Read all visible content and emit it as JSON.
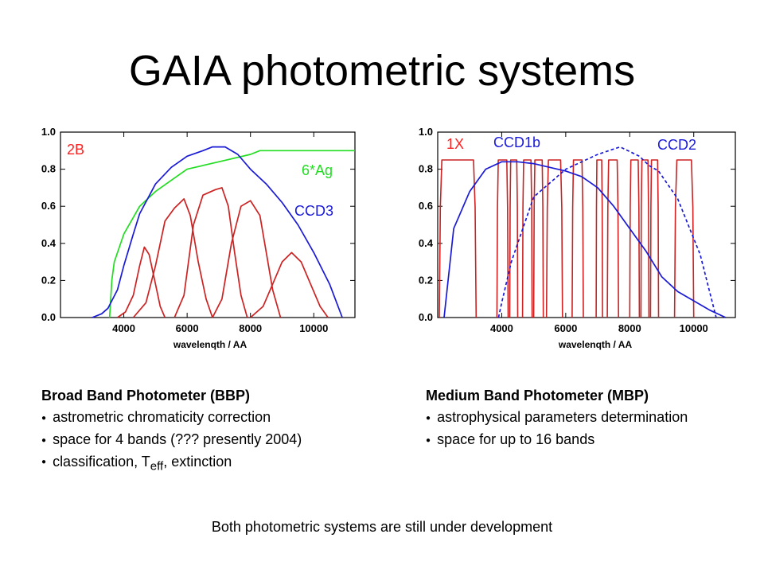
{
  "slide": {
    "title": "GAIA photometric systems",
    "footer": "Both photometric systems are still under development"
  },
  "bbp": {
    "heading": "Broad Band Photometer (BBP)",
    "bullets": [
      "astrometric chromaticity correction",
      "space for 4 bands (??? presently 2004)"
    ],
    "bullet3_prefix": "classification, T",
    "bullet3_sub": "eff",
    "bullet3_suffix": ", extinction"
  },
  "mbp": {
    "heading": "Medium Band Photometer (MBP)",
    "bullets": [
      "astrophysical parameters determination",
      "space for up to 16 bands"
    ]
  },
  "bullet_glyph": "●",
  "chart_data": [
    {
      "type": "line",
      "title": "",
      "xlabel": "wavelenqth / AA",
      "ylabel": "",
      "xlim": [
        2000,
        11300
      ],
      "ylim": [
        0,
        1.0
      ],
      "xticks": [
        4000,
        6000,
        8000,
        10000
      ],
      "yticks": [
        0.0,
        0.2,
        0.4,
        0.6,
        0.8,
        1.0
      ],
      "ytick_labels": [
        "0.0",
        "0.2",
        "0.4",
        "0.6",
        "0.8",
        "1.0"
      ],
      "grid": false,
      "annotations": [
        {
          "text": "2B",
          "color": "#ff2020",
          "series": "2B"
        },
        {
          "text": "6*Ag",
          "color": "#22dd22",
          "series": "6*Ag"
        },
        {
          "text": "CCD3",
          "color": "#1a1ad6",
          "series": "CCD3"
        }
      ],
      "series": [
        {
          "name": "6*Ag",
          "color": "#22dd22",
          "dash": false,
          "x": [
            3550,
            3620,
            3700,
            4000,
            4500,
            5000,
            5500,
            6000,
            7000,
            8000,
            8300,
            9000,
            10000,
            11000,
            11300
          ],
          "y": [
            0.0,
            0.2,
            0.3,
            0.45,
            0.6,
            0.68,
            0.74,
            0.8,
            0.84,
            0.88,
            0.9,
            0.9,
            0.9,
            0.9,
            0.9
          ]
        },
        {
          "name": "CCD3",
          "color": "#1a1ad6",
          "dash": false,
          "x": [
            3000,
            3300,
            3500,
            3800,
            4000,
            4300,
            4500,
            5000,
            5500,
            6000,
            6500,
            6800,
            7200,
            7600,
            8000,
            8500,
            9000,
            9500,
            10000,
            10500,
            10900
          ],
          "y": [
            0.0,
            0.02,
            0.05,
            0.15,
            0.28,
            0.45,
            0.56,
            0.72,
            0.81,
            0.87,
            0.9,
            0.92,
            0.92,
            0.88,
            0.8,
            0.72,
            0.62,
            0.5,
            0.35,
            0.18,
            0.0
          ]
        },
        {
          "name": "2B-band1",
          "color": "#cc2222",
          "dash": false,
          "x": [
            3800,
            4050,
            4300,
            4500,
            4650,
            4800,
            5000,
            5150,
            5300
          ],
          "y": [
            0.0,
            0.03,
            0.12,
            0.28,
            0.38,
            0.34,
            0.18,
            0.06,
            0.0
          ]
        },
        {
          "name": "2B-band2",
          "color": "#cc2222",
          "dash": false,
          "x": [
            4300,
            4700,
            5000,
            5300,
            5600,
            5900,
            6100,
            6350,
            6600,
            6800
          ],
          "y": [
            0.0,
            0.08,
            0.28,
            0.52,
            0.59,
            0.64,
            0.55,
            0.3,
            0.1,
            0.0
          ]
        },
        {
          "name": "2B-band3",
          "color": "#cc2222",
          "dash": false,
          "x": [
            5600,
            5900,
            6200,
            6500,
            6900,
            7100,
            7300,
            7500,
            7700,
            7900
          ],
          "y": [
            0.0,
            0.12,
            0.5,
            0.66,
            0.69,
            0.7,
            0.6,
            0.35,
            0.12,
            0.0
          ]
        },
        {
          "name": "2B-band4",
          "color": "#cc2222",
          "dash": false,
          "x": [
            6800,
            7100,
            7400,
            7700,
            8000,
            8300,
            8500,
            8700,
            8950
          ],
          "y": [
            0.0,
            0.1,
            0.4,
            0.6,
            0.63,
            0.55,
            0.35,
            0.15,
            0.0
          ]
        },
        {
          "name": "2B-band5",
          "color": "#cc2222",
          "dash": false,
          "x": [
            8000,
            8400,
            8700,
            9000,
            9300,
            9600,
            9900,
            10200,
            10450
          ],
          "y": [
            0.0,
            0.06,
            0.18,
            0.3,
            0.35,
            0.3,
            0.18,
            0.06,
            0.0
          ]
        }
      ]
    },
    {
      "type": "line",
      "title": "",
      "xlabel": "wavelenqth / AA",
      "ylabel": "",
      "xlim": [
        2000,
        11300
      ],
      "ylim": [
        0,
        1.0
      ],
      "xticks": [
        4000,
        6000,
        8000,
        10000
      ],
      "yticks": [
        0.0,
        0.2,
        0.4,
        0.6,
        0.8,
        1.0
      ],
      "ytick_labels": [
        "0.0",
        "0.2",
        "0.4",
        "0.6",
        "0.8",
        "1.0"
      ],
      "grid": false,
      "annotations": [
        {
          "text": "1X",
          "color": "#ff2020",
          "series": "1X"
        },
        {
          "text": "CCD1b",
          "color": "#1a1ad6",
          "series": "CCD1b"
        },
        {
          "text": "CCD2",
          "color": "#1a1ad6",
          "series": "CCD2"
        }
      ],
      "filters": [
        [
          2050,
          3200
        ],
        [
          3850,
          4200
        ],
        [
          4250,
          4500
        ],
        [
          4650,
          4950
        ],
        [
          5000,
          5300
        ],
        [
          5400,
          5900
        ],
        [
          6200,
          6550
        ],
        [
          6950,
          7150
        ],
        [
          7300,
          7650
        ],
        [
          8000,
          8300
        ],
        [
          8350,
          8600
        ],
        [
          8650,
          8900
        ],
        [
          9400,
          10000
        ]
      ],
      "filter_peak": 0.85,
      "filter_color": "#cc2222",
      "series": [
        {
          "name": "CCD1b",
          "color": "#1a1ad6",
          "dash": false,
          "x": [
            2200,
            2500,
            3000,
            3500,
            4000,
            4500,
            5000,
            5500,
            6000,
            6500,
            7000,
            7500,
            8000,
            8500,
            9000,
            9500,
            10000,
            10500,
            11000
          ],
          "y": [
            0.0,
            0.48,
            0.68,
            0.8,
            0.84,
            0.84,
            0.83,
            0.81,
            0.79,
            0.76,
            0.7,
            0.6,
            0.48,
            0.36,
            0.22,
            0.14,
            0.09,
            0.04,
            0.0
          ]
        },
        {
          "name": "CCD2",
          "color": "#1a1ad6",
          "dash": true,
          "x": [
            3900,
            4000,
            4300,
            5000,
            6000,
            7000,
            7700,
            8300,
            8600,
            8900,
            9500,
            10200,
            10700
          ],
          "y": [
            0.0,
            0.08,
            0.3,
            0.65,
            0.8,
            0.88,
            0.92,
            0.87,
            0.82,
            0.79,
            0.64,
            0.34,
            0.0
          ]
        }
      ]
    }
  ]
}
